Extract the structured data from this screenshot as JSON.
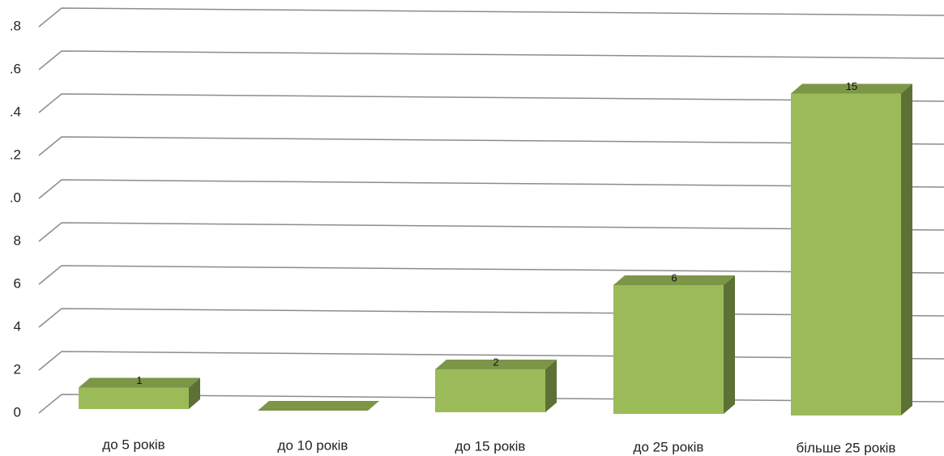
{
  "chart_data": {
    "type": "bar3d",
    "categories": [
      "до 5 років",
      "до 10 років",
      "до 15 років",
      "до 25 років",
      "більше 25 років"
    ],
    "values": [
      1,
      0,
      2,
      6,
      15
    ],
    "value_labels": [
      "1",
      null,
      "2",
      "6",
      "15"
    ],
    "color": "#9bbb59",
    "ylim": [
      0,
      18
    ],
    "yticks": [
      0,
      2,
      4,
      6,
      8,
      {
        "value": 10,
        "label": ".0"
      },
      {
        "value": 12,
        "label": ".2"
      },
      {
        "value": 14,
        "label": ".4"
      },
      {
        "value": 16,
        "label": ".6"
      },
      {
        "value": 18,
        "label": ".8"
      }
    ],
    "grid": true
  }
}
